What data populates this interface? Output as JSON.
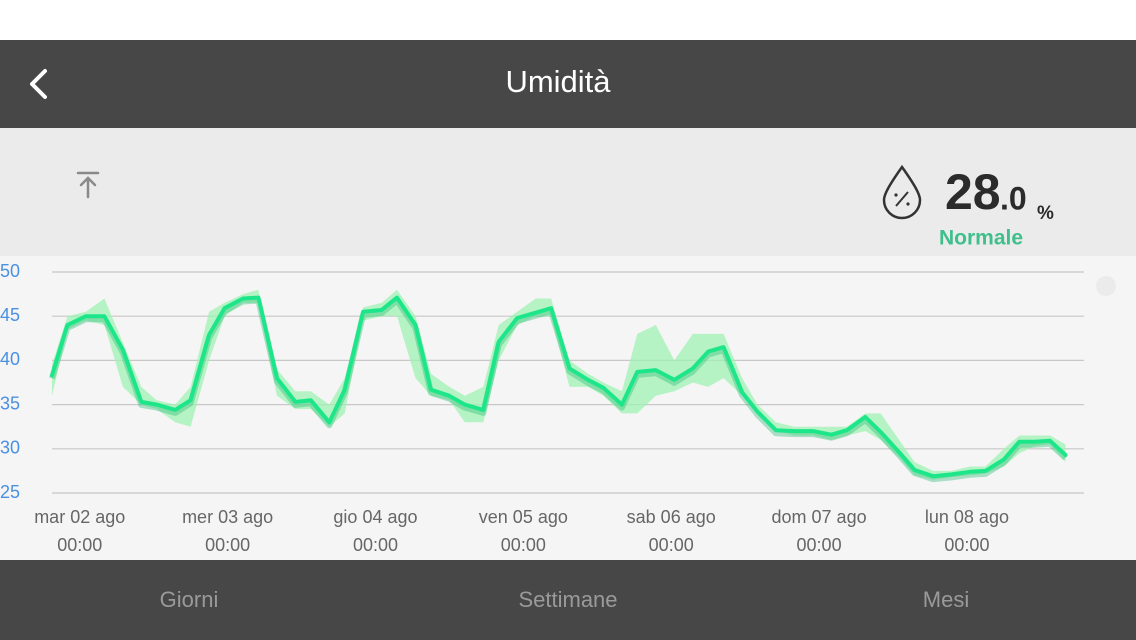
{
  "header": {
    "title": "Umidità"
  },
  "reading": {
    "integer": "28",
    "decimal": ".0",
    "unit": "%",
    "status": "Normale"
  },
  "chart_data": {
    "type": "line",
    "x": [
      -4.5,
      -2,
      1,
      4,
      7,
      10,
      12.5,
      15.5,
      18,
      21,
      23.5,
      26.5,
      29,
      32,
      35,
      37.5,
      40.5,
      43,
      46,
      49,
      51.5,
      54.5,
      57,
      60,
      62.5,
      65.5,
      68,
      71,
      74,
      76.5,
      79.5,
      82.5,
      85,
      88,
      90.5,
      93.5,
      96.5,
      99.5,
      102,
      104.5,
      107.5,
      110,
      113,
      116,
      119,
      122,
      124.5,
      127.5,
      130,
      133,
      135.5,
      138.5,
      141.5,
      144.5,
      147,
      150,
      152.5,
      155,
      157.5,
      160
    ],
    "values": [
      38.3,
      44,
      45,
      45,
      41.2,
      35.3,
      35,
      34.4,
      35.5,
      42.9,
      45.9,
      47,
      47.1,
      38,
      35.3,
      35.5,
      33,
      36.7,
      45.5,
      45.7,
      47.1,
      44,
      36.7,
      36,
      35,
      34.4,
      42.1,
      44.8,
      45.4,
      45.9,
      39.1,
      37.8,
      36.9,
      35,
      38.7,
      38.9,
      37.8,
      39.1,
      41,
      41.5,
      36.4,
      34.2,
      32.1,
      32,
      32,
      31.6,
      32.1,
      33.6,
      31.9,
      29.6,
      27.6,
      26.9,
      27.1,
      27.4,
      27.5,
      28.8,
      30.8,
      30.8,
      30.9,
      29.3
    ],
    "band_high": [
      39.5,
      45,
      45.5,
      47,
      42,
      37,
      35.5,
      35,
      37,
      45.5,
      46.5,
      47.5,
      48,
      39,
      36.5,
      36.5,
      35,
      38,
      46,
      46.5,
      48,
      45,
      38.5,
      37,
      36,
      37,
      44,
      45.5,
      47,
      47,
      40,
      38.5,
      37.5,
      36.5,
      43,
      44,
      40,
      43,
      43,
      43,
      38,
      35,
      33,
      32.5,
      32.5,
      32.5,
      32.5,
      34,
      34,
      31,
      28.5,
      27.5,
      27.5,
      28,
      28,
      30,
      31.5,
      31.5,
      31.5,
      30.5
    ],
    "band_low": [
      36,
      43.5,
      44.5,
      44,
      37,
      35,
      34.5,
      33,
      32.5,
      40,
      45,
      46.5,
      46.5,
      36,
      34.5,
      34.5,
      32.5,
      34,
      44.5,
      45,
      45,
      38,
      36,
      35.5,
      33,
      33,
      40,
      44,
      45,
      45,
      37,
      37,
      36,
      34,
      34,
      36,
      36.5,
      37.5,
      37,
      38,
      36,
      34,
      32,
      31.5,
      31.5,
      31,
      31.5,
      32,
      31,
      29,
      27,
      26.5,
      26.8,
      27,
      27.2,
      28,
      29.5,
      30.3,
      30.5,
      28.5
    ],
    "color": "#1de68a",
    "band_color": "#9ff2b3",
    "xlim": [
      -4.5,
      163
    ],
    "ylim": [
      25,
      50
    ],
    "yticks": [
      25,
      30,
      35,
      40,
      45,
      50
    ],
    "xticks": [
      {
        "value": 0,
        "label": "mar 02 ago\n00:00"
      },
      {
        "value": 24,
        "label": "mer 03 ago\n00:00"
      },
      {
        "value": 48,
        "label": "gio 04 ago\n00:00"
      },
      {
        "value": 72,
        "label": "ven 05 ago\n00:00"
      },
      {
        "value": 96,
        "label": "sab 06 ago\n00:00"
      },
      {
        "value": 120,
        "label": "dom 07 ago\n00:00"
      },
      {
        "value": 144,
        "label": "lun 08 ago\n00:00"
      }
    ],
    "grid": true
  },
  "tabs": [
    "Giorni",
    "Settimane",
    "Mesi"
  ]
}
